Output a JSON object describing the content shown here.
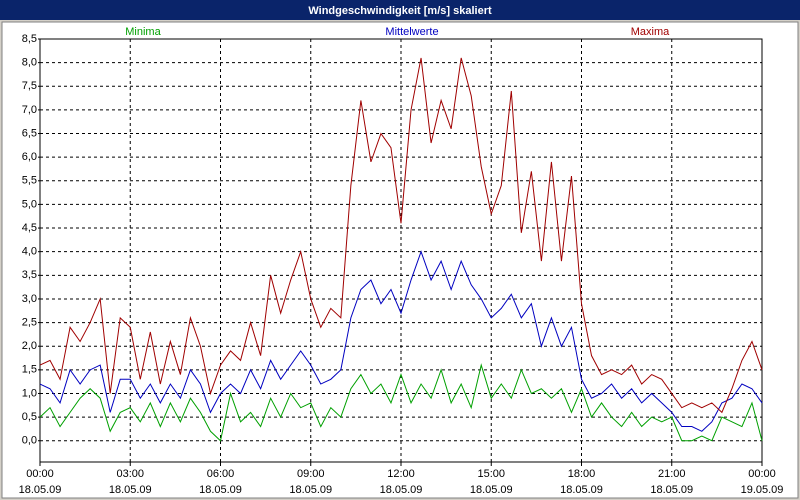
{
  "chart_data": {
    "type": "line",
    "title": "Windgeschwindigkeit [m/s] skaliert",
    "x": [
      0,
      20,
      40,
      60,
      80,
      100,
      120,
      140,
      160,
      180,
      200,
      220,
      240,
      260,
      280,
      300,
      320,
      340,
      360,
      380,
      400,
      420,
      440,
      460,
      480,
      500,
      520,
      540,
      560,
      580,
      600,
      620,
      640,
      660,
      680,
      700,
      720,
      740,
      760,
      780,
      800,
      820,
      840,
      860,
      880,
      900,
      920,
      940,
      960,
      980,
      1000,
      1020,
      1040,
      1060,
      1080,
      1100,
      1120,
      1140,
      1160,
      1180,
      1200,
      1220,
      1240,
      1260,
      1280,
      1300,
      1320,
      1340,
      1360,
      1380,
      1400,
      1420,
      1440
    ],
    "xlim": [
      0,
      1440
    ],
    "xticks": [
      {
        "value": 0,
        "label": "00:00",
        "sublabel": "18.05.09"
      },
      {
        "value": 180,
        "label": "03:00",
        "sublabel": "18.05.09"
      },
      {
        "value": 360,
        "label": "06:00",
        "sublabel": "18.05.09"
      },
      {
        "value": 540,
        "label": "09:00",
        "sublabel": "18.05.09"
      },
      {
        "value": 720,
        "label": "12:00",
        "sublabel": "18.05.09"
      },
      {
        "value": 900,
        "label": "15:00",
        "sublabel": "18.05.09"
      },
      {
        "value": 1080,
        "label": "18:00",
        "sublabel": "18.05.09"
      },
      {
        "value": 1260,
        "label": "21:00",
        "sublabel": "18.05.09"
      },
      {
        "value": 1440,
        "label": "00:00",
        "sublabel": "19.05.09"
      }
    ],
    "ylim": [
      -0.45,
      8.5
    ],
    "yticks": [
      {
        "value": 0,
        "label": "0,0"
      },
      {
        "value": 0.5,
        "label": "0,5"
      },
      {
        "value": 1,
        "label": "1,0"
      },
      {
        "value": 1.5,
        "label": "1,5"
      },
      {
        "value": 2,
        "label": "2,0"
      },
      {
        "value": 2.5,
        "label": "2,5"
      },
      {
        "value": 3,
        "label": "3,0"
      },
      {
        "value": 3.5,
        "label": "3,5"
      },
      {
        "value": 4,
        "label": "4,0"
      },
      {
        "value": 4.5,
        "label": "4,5"
      },
      {
        "value": 5,
        "label": "5,0"
      },
      {
        "value": 5.5,
        "label": "5,5"
      },
      {
        "value": 6,
        "label": "6,0"
      },
      {
        "value": 6.5,
        "label": "6,5"
      },
      {
        "value": 7,
        "label": "7,0"
      },
      {
        "value": 7.5,
        "label": "7,5"
      },
      {
        "value": 8,
        "label": "8,0"
      },
      {
        "value": 8.5,
        "label": "8,5"
      }
    ],
    "grid": true,
    "series": [
      {
        "name": "Minima",
        "color": "#00a000",
        "values": [
          0.5,
          0.7,
          0.3,
          0.6,
          0.9,
          1.1,
          0.9,
          0.2,
          0.6,
          0.7,
          0.4,
          0.8,
          0.3,
          0.8,
          0.4,
          0.9,
          0.6,
          0.2,
          0.0,
          1.0,
          0.4,
          0.6,
          0.3,
          0.9,
          0.5,
          1.0,
          0.7,
          0.8,
          0.3,
          0.7,
          0.5,
          1.1,
          1.4,
          1.0,
          1.2,
          0.8,
          1.4,
          0.8,
          1.2,
          0.9,
          1.5,
          0.8,
          1.2,
          0.7,
          1.6,
          0.9,
          1.2,
          0.9,
          1.5,
          1.0,
          1.1,
          0.9,
          1.1,
          0.6,
          1.1,
          0.5,
          0.8,
          0.5,
          0.3,
          0.6,
          0.3,
          0.5,
          0.4,
          0.5,
          0.0,
          0.0,
          0.1,
          0.0,
          0.5,
          0.4,
          0.3,
          0.8,
          0.0
        ]
      },
      {
        "name": "Mittelwerte",
        "color": "#0000c0",
        "values": [
          1.2,
          1.1,
          0.8,
          1.5,
          1.2,
          1.5,
          1.6,
          0.6,
          1.3,
          1.3,
          0.9,
          1.2,
          0.8,
          1.2,
          0.9,
          1.5,
          1.2,
          0.6,
          1.0,
          1.2,
          1.0,
          1.5,
          1.1,
          1.7,
          1.3,
          1.6,
          1.9,
          1.6,
          1.2,
          1.3,
          1.5,
          2.6,
          3.2,
          3.4,
          2.9,
          3.2,
          2.7,
          3.4,
          4.0,
          3.4,
          3.8,
          3.2,
          3.8,
          3.3,
          3.0,
          2.6,
          2.8,
          3.1,
          2.6,
          2.9,
          2.0,
          2.6,
          2.0,
          2.4,
          1.3,
          0.9,
          1.0,
          1.2,
          0.9,
          1.1,
          0.8,
          1.0,
          0.8,
          0.6,
          0.3,
          0.3,
          0.2,
          0.4,
          0.8,
          0.9,
          1.2,
          1.1,
          0.8
        ]
      },
      {
        "name": "Maxima",
        "color": "#a00000",
        "values": [
          1.6,
          1.7,
          1.3,
          2.4,
          2.1,
          2.5,
          3.0,
          1.0,
          2.6,
          2.4,
          1.3,
          2.3,
          1.2,
          2.1,
          1.4,
          2.6,
          2.0,
          1.0,
          1.6,
          1.9,
          1.7,
          2.5,
          1.8,
          3.5,
          2.7,
          3.4,
          4.0,
          3.0,
          2.4,
          2.8,
          2.6,
          5.4,
          7.2,
          5.9,
          6.5,
          6.2,
          4.6,
          7.0,
          8.1,
          6.3,
          7.2,
          6.6,
          8.1,
          7.3,
          5.8,
          4.8,
          5.4,
          7.4,
          4.4,
          5.7,
          3.8,
          5.9,
          3.8,
          5.6,
          2.9,
          1.8,
          1.4,
          1.5,
          1.4,
          1.6,
          1.2,
          1.4,
          1.3,
          1.0,
          0.7,
          0.8,
          0.7,
          0.8,
          0.6,
          1.1,
          1.7,
          2.1,
          1.5
        ]
      }
    ]
  }
}
